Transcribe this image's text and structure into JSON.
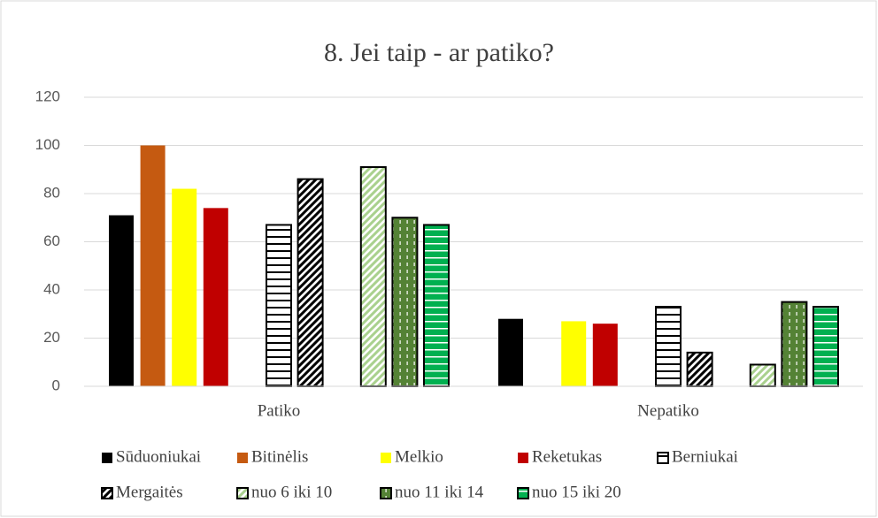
{
  "chart_data": {
    "type": "bar",
    "title": "8. Jei taip - ar patiko?",
    "categories": [
      "Patiko",
      "Nepatiko"
    ],
    "series": [
      {
        "name": "Sūduoniukai",
        "color": "#000000",
        "pattern": "solid",
        "values": [
          71,
          28
        ]
      },
      {
        "name": "Bitinėlis",
        "color": "#c55a11",
        "pattern": "solid",
        "values": [
          100,
          0
        ]
      },
      {
        "name": "Melkio",
        "color": "#ffff00",
        "pattern": "solid",
        "values": [
          82,
          27
        ]
      },
      {
        "name": "Reketukas",
        "color": "#c00000",
        "pattern": "solid",
        "values": [
          74,
          26
        ]
      },
      {
        "name": "Berniukai",
        "color": "#000000",
        "pattern": "horizontal",
        "values": [
          67,
          33
        ]
      },
      {
        "name": "Mergaitės",
        "color": "#000000",
        "pattern": "diagonal",
        "values": [
          86,
          14
        ]
      },
      {
        "name": "nuo 6 iki 10",
        "color": "#a9d18e",
        "pattern": "diagonal",
        "values": [
          91,
          9
        ]
      },
      {
        "name": "nuo 11 iki 14",
        "color": "#548235",
        "pattern": "dashed-vertical",
        "values": [
          70,
          35
        ]
      },
      {
        "name": "nuo 15 iki 20",
        "color": "#00b050",
        "pattern": "horizontal-light",
        "values": [
          67,
          33
        ]
      }
    ],
    "ylim": [
      0,
      120
    ],
    "yticks": [
      0,
      20,
      40,
      60,
      80,
      100,
      120
    ],
    "grid": true,
    "legend": "bottom"
  }
}
